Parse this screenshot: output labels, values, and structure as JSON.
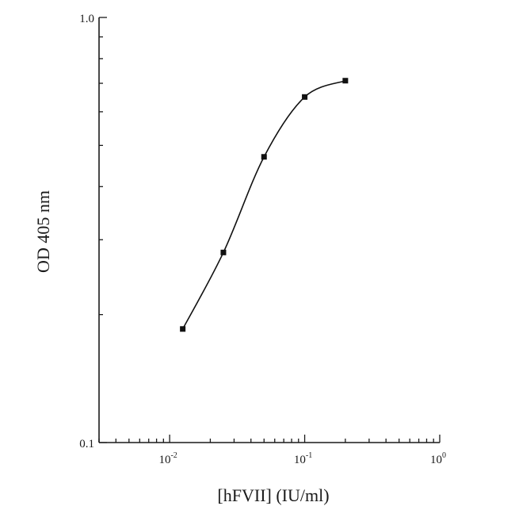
{
  "chart_data": {
    "type": "scatter",
    "title": "",
    "xlabel": "[hFVII] (IU/ml)",
    "ylabel": "OD 405 nm",
    "x_scale": "log",
    "y_scale": "log",
    "xlim": [
      0.003,
      1
    ],
    "ylim": [
      0.1,
      1
    ],
    "grid": false,
    "x_ticks": [
      {
        "value": 0.01,
        "base": "10",
        "exp": "-2"
      },
      {
        "value": 0.1,
        "base": "10",
        "exp": "-1"
      },
      {
        "value": 1,
        "base": "10",
        "exp": "0"
      }
    ],
    "y_ticks": [
      {
        "value": 0.1,
        "label": "0.1"
      },
      {
        "value": 1,
        "label": "1.0"
      }
    ],
    "series": [
      {
        "x": [
          0.0125,
          0.025,
          0.05,
          0.1,
          0.2
        ],
        "y": [
          0.185,
          0.28,
          0.47,
          0.65,
          0.71
        ],
        "fit_curve": true
      }
    ]
  }
}
